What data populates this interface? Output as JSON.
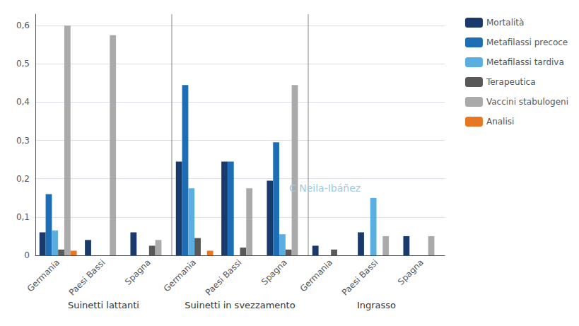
{
  "chart_data": {
    "type": "bar",
    "categories": [
      "Germania",
      "Paesi Bassi",
      "Spagna",
      "Germania",
      "Paesi Bassi",
      "Spagna",
      "Germania",
      "Paesi Bassi",
      "Spagna"
    ],
    "group_labels": [
      "Suinetti lattanti",
      "Suinetti in svezzamento",
      "Ingrasso"
    ],
    "series": [
      {
        "name": "Mortalità",
        "color": "#1a3a6b",
        "values": [
          0.06,
          0.04,
          0.06,
          0.245,
          0.245,
          0.195,
          0.025,
          0.06,
          0.05
        ]
      },
      {
        "name": "Metafilassi precoce",
        "color": "#1e6eb5",
        "values": [
          0.16,
          0.0,
          0.0,
          0.445,
          0.245,
          0.295,
          0.0,
          0.0,
          0.0
        ]
      },
      {
        "name": "Metafilassi tardiva",
        "color": "#5baee0",
        "values": [
          0.065,
          0.0,
          0.0,
          0.175,
          0.0,
          0.055,
          0.0,
          0.15,
          0.0
        ]
      },
      {
        "name": "Terapeutica",
        "color": "#585858",
        "values": [
          0.015,
          0.0,
          0.025,
          0.045,
          0.02,
          0.015,
          0.015,
          0.0,
          0.0
        ]
      },
      {
        "name": "Vaccini stabulogeni",
        "color": "#aaaaaa",
        "values": [
          0.6,
          0.575,
          0.04,
          0.0,
          0.175,
          0.445,
          0.0,
          0.05,
          0.05
        ]
      },
      {
        "name": "Analisi",
        "color": "#e87722",
        "values": [
          0.012,
          0.0,
          0.0,
          0.012,
          0.0,
          0.0,
          0.0,
          0.0,
          0.0
        ]
      }
    ],
    "annotations": [
      {
        "text": "C Neila-Ibáñez",
        "color": "#9ecae1"
      }
    ],
    "ylim": [
      0,
      0.63
    ],
    "yticks": [
      0,
      {
        "value": 0.1,
        "label": "0,1"
      },
      {
        "value": 0.2,
        "label": "0,2"
      },
      {
        "value": 0.3,
        "label": "0,3"
      },
      {
        "value": 0.4,
        "label": "0,4"
      },
      {
        "value": 0.5,
        "label": "0,5"
      },
      {
        "value": 0.6,
        "label": "0,6"
      }
    ],
    "grid": true,
    "legend": "upper right"
  }
}
